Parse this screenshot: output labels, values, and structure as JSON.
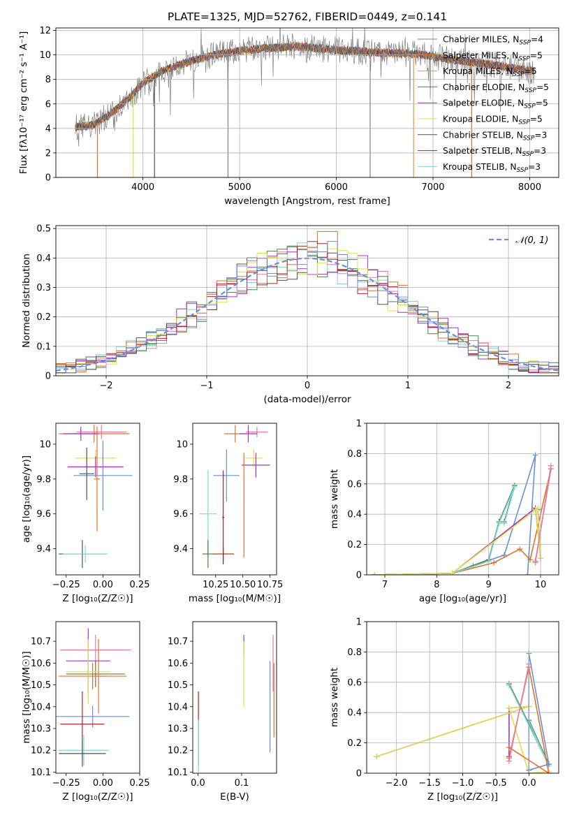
{
  "title": "PLATE=1325, MJD=52762, FIBERID=0449, z=0.141",
  "series_colors": [
    "#808080",
    "#e36f2c",
    "#e8973a",
    "#4c8040",
    "#a033c4",
    "#e0e04a",
    "#505050",
    "#b02020",
    "#7fd4d8"
  ],
  "extra_colors": {
    "blue": "#6a8ed8",
    "pink": "#e87aa8",
    "lightgreen": "#b8d880"
  },
  "chart_data": [
    {
      "id": "spectrum",
      "type": "line",
      "xlabel": "wavelength [Angstrom, rest frame]",
      "ylabel": "Flux [fλ10⁻¹⁷ erg cm⁻² s⁻¹ A⁻¹]",
      "xlim": [
        3100,
        8300
      ],
      "ylim": [
        0,
        12.2
      ],
      "xticks": [
        4000,
        5000,
        6000,
        7000,
        8000
      ],
      "yticks": [
        0,
        2,
        4,
        6,
        8,
        10,
        12
      ],
      "legend_position": "right",
      "legend": [
        "Chabrier MILES, N_SSP=4",
        "Salpeter MILES, N_SSP=5",
        "Kroupa MILES, N_SSP=5",
        "Chabrier ELODIE, N_SSP=5",
        "Salpeter ELODIE, N_SSP=5",
        "Kroupa ELODIE, N_SSP=5",
        "Chabrier STELIB, N_SSP=3",
        "Salpeter STELIB, N_SSP=3",
        "Kroupa STELIB, N_SSP=3"
      ],
      "continuum_x": [
        3300,
        3500,
        3700,
        3900,
        4000,
        4200,
        4500,
        4800,
        5200,
        5600,
        6000,
        6400,
        6800,
        7200,
        7600,
        8000,
        8050
      ],
      "continuum_y": [
        4.1,
        4.3,
        5.4,
        6.8,
        7.7,
        8.7,
        9.5,
        10.1,
        10.5,
        10.7,
        10.4,
        10.2,
        10.1,
        9.6,
        9.2,
        8.7,
        8.7
      ],
      "drops_to_zero_at": [
        3530,
        3900,
        4120,
        4880,
        6350,
        6800,
        7400
      ]
    },
    {
      "id": "residuals",
      "type": "step",
      "xlabel": "(data-model)/error",
      "ylabel": "Normed distribution",
      "xlim": [
        -2.5,
        2.5
      ],
      "ylim": [
        0,
        0.51
      ],
      "xticks": [
        -2,
        -1,
        0,
        1,
        2
      ],
      "yticks": [
        0,
        0.1,
        0.2,
        0.3,
        0.4,
        0.5
      ],
      "reference_curve": "𝒩(0, 1)",
      "legend_position": "upper right"
    },
    {
      "id": "age_vs_Z",
      "type": "errorbar",
      "xlabel": "Z [log₁₀(Z/Z☉)]",
      "ylabel": "age  [log₁₀(age/yr)]",
      "xlim": [
        -0.32,
        0.25
      ],
      "ylim": [
        9.25,
        10.12
      ],
      "xticks": [
        -0.25,
        0.0,
        0.25
      ],
      "xticklabels": [
        "−0.25",
        "0.00",
        "0.25"
      ],
      "yticks": [
        9.4,
        9.6,
        9.8,
        10.0
      ],
      "points": [
        {
          "x": -0.01,
          "y": 10.07,
          "ex": 0.17,
          "ey": 0.04,
          "color": "pink"
        },
        {
          "x": -0.06,
          "y": 10.06,
          "ex": 0.24,
          "ey": 0.05,
          "color": "#e36f2c"
        },
        {
          "x": -0.15,
          "y": 10.06,
          "ex": 0.12,
          "ey": 0.04,
          "color": "#a033c4"
        },
        {
          "x": -0.05,
          "y": 9.92,
          "ex": 0.14,
          "ey": 0.05,
          "color": "#e0e04a"
        },
        {
          "x": -0.05,
          "y": 9.87,
          "ex": 0.19,
          "ey": 0.06,
          "color": "#a033c4"
        },
        {
          "x": 0.0,
          "y": 9.82,
          "ex": 0.2,
          "ey": 0.2,
          "color": "blue"
        },
        {
          "x": -0.11,
          "y": 9.83,
          "ex": 0.05,
          "ey": 0.15,
          "color": "#505050"
        },
        {
          "x": -0.04,
          "y": 9.8,
          "ex": 0.02,
          "ey": 0.3,
          "color": "#e36f2c"
        },
        {
          "x": -0.14,
          "y": 9.37,
          "ex": 0.16,
          "ey": 0.08,
          "color": "#505050"
        },
        {
          "x": -0.12,
          "y": 9.37,
          "ex": 0.15,
          "ey": 0.05,
          "color": "#7fd4d8"
        }
      ]
    },
    {
      "id": "age_vs_mass",
      "type": "errorbar",
      "xlabel": "mass [log₁₀(M/M☉)]",
      "ylabel": "",
      "xlim": [
        10.04,
        10.81
      ],
      "ylim": [
        9.25,
        10.12
      ],
      "xticks": [
        10.25,
        10.5,
        10.75
      ],
      "xticklabels": [
        "10.25",
        "10.50",
        "10.75"
      ],
      "yticks": [
        9.4,
        9.6,
        9.8,
        10.0
      ],
      "points": [
        {
          "x": 10.63,
          "y": 10.07,
          "ex": 0.1,
          "ey": 0.03,
          "color": "pink"
        },
        {
          "x": 10.43,
          "y": 10.06,
          "ex": 0.1,
          "ey": 0.05,
          "color": "#e36f2c"
        },
        {
          "x": 10.55,
          "y": 10.06,
          "ex": 0.08,
          "ey": 0.05,
          "color": "#a033c4"
        },
        {
          "x": 10.6,
          "y": 9.92,
          "ex": 0.08,
          "ey": 0.05,
          "color": "#e0e04a"
        },
        {
          "x": 10.62,
          "y": 9.88,
          "ex": 0.13,
          "ey": 0.07,
          "color": "#a033c4"
        },
        {
          "x": 10.35,
          "y": 9.82,
          "ex": 0.12,
          "ey": 0.15,
          "color": "blue"
        },
        {
          "x": 10.18,
          "y": 9.6,
          "ex": 0.08,
          "ey": 0.25,
          "color": "#7fd4d8"
        },
        {
          "x": 10.32,
          "y": 9.58,
          "ex": 0.01,
          "ey": 0.27,
          "color": "#b02020"
        },
        {
          "x": 10.51,
          "y": 9.65,
          "ex": 0.0,
          "ey": 0.3,
          "color": "#e36f2c"
        },
        {
          "x": 10.32,
          "y": 9.37,
          "ex": 0.1,
          "ey": 0.04,
          "color": "#b02020"
        },
        {
          "x": 10.18,
          "y": 9.37,
          "ex": 0.05,
          "ey": 0.08,
          "color": "#4c8040"
        }
      ]
    },
    {
      "id": "mass_weight_vs_age",
      "type": "line",
      "xlabel": "age  [log₁₀(age/yr)]",
      "ylabel": "mass weight",
      "xlim": [
        6.65,
        10.35
      ],
      "ylim": [
        0,
        1.0
      ],
      "xticks": [
        7,
        8,
        9,
        10
      ],
      "yticks": [
        0,
        0.2,
        0.4,
        0.6,
        0.8,
        1.0
      ],
      "series": [
        {
          "color": "blue",
          "x": [
            6.8,
            8.3,
            8.7,
            9.3,
            9.9,
            9.75
          ],
          "y": [
            0.0,
            0.01,
            0.06,
            0.13,
            0.79,
            0.0
          ]
        },
        {
          "color": "#e36f2c",
          "x": [
            6.8,
            8.3,
            9.1,
            9.6,
            9.8,
            10.2,
            9.9
          ],
          "y": [
            0.0,
            0.01,
            0.08,
            0.17,
            0.1,
            0.7,
            0.09
          ]
        },
        {
          "color": "#4c8040",
          "x": [
            6.8,
            8.3,
            9.0,
            9.2,
            9.5,
            9.3
          ],
          "y": [
            0.0,
            0.01,
            0.1,
            0.35,
            0.59,
            0.35
          ]
        },
        {
          "color": "#7fd4d8",
          "x": [
            6.8,
            8.3,
            9.0,
            9.2,
            9.5,
            9.3
          ],
          "y": [
            0.0,
            0.01,
            0.09,
            0.34,
            0.58,
            0.34
          ]
        },
        {
          "color": "#a033c4",
          "x": [
            6.8,
            8.3,
            9.9,
            10.0,
            9.95
          ],
          "y": [
            0.0,
            0.01,
            0.44,
            0.11,
            0.43
          ]
        },
        {
          "color": "#e0e04a",
          "x": [
            6.8,
            8.3,
            9.95,
            10.0,
            9.9
          ],
          "y": [
            0.0,
            0.01,
            0.44,
            0.11,
            0.43
          ]
        },
        {
          "color": "pink",
          "x": [
            9.9,
            10.2
          ],
          "y": [
            0.08,
            0.72
          ]
        }
      ]
    },
    {
      "id": "mass_vs_Z",
      "type": "errorbar",
      "xlabel": "Z [log₁₀(Z/Z☉)]",
      "ylabel": "mass [log₁₀(M/M☉)]",
      "xlim": [
        -0.32,
        0.25
      ],
      "ylim": [
        10.095,
        10.79
      ],
      "xticks": [
        -0.25,
        0.0,
        0.25
      ],
      "xticklabels": [
        "−0.25",
        "0.00",
        "0.25"
      ],
      "yticks": [
        10.1,
        10.2,
        10.3,
        10.4,
        10.5,
        10.6,
        10.7
      ],
      "points": [
        {
          "x": -0.05,
          "y": 10.66,
          "ex": 0.24,
          "ey": 0.07,
          "color": "pink"
        },
        {
          "x": -0.1,
          "y": 10.61,
          "ex": 0.15,
          "ey": 0.15,
          "color": "#a033c4"
        },
        {
          "x": -0.05,
          "y": 10.55,
          "ex": 0.2,
          "ey": 0.06,
          "color": "#4c8040"
        },
        {
          "x": -0.07,
          "y": 10.54,
          "ex": 0.23,
          "ey": 0.06,
          "color": "#e36f2c"
        },
        {
          "x": -0.1,
          "y": 10.56,
          "ex": 0.15,
          "ey": 0.15,
          "color": "#e0e04a"
        },
        {
          "x": -0.03,
          "y": 10.54,
          "ex": 0.03,
          "ey": 0.17,
          "color": "#e36f2c"
        },
        {
          "x": -0.07,
          "y": 10.355,
          "ex": 0.25,
          "ey": 0.05,
          "color": "blue"
        },
        {
          "x": -0.14,
          "y": 10.32,
          "ex": 0.15,
          "ey": 0.15,
          "color": "#b02020"
        },
        {
          "x": -0.13,
          "y": 10.2,
          "ex": 0.17,
          "ey": 0.07,
          "color": "#7fd4d8"
        },
        {
          "x": -0.14,
          "y": 10.185,
          "ex": 0.16,
          "ey": 0.06,
          "color": "#505050"
        }
      ]
    },
    {
      "id": "mass_vs_EBV",
      "type": "errorbar",
      "xlabel": "E(B-V)",
      "ylabel": "",
      "xlim": [
        -0.012,
        0.18
      ],
      "ylim": [
        10.095,
        10.79
      ],
      "xticks": [
        0.0,
        0.1
      ],
      "xticklabels": [
        "0.0",
        "0.1"
      ],
      "yticks": [
        10.1,
        10.2,
        10.3,
        10.4,
        10.5,
        10.6,
        10.7
      ],
      "points": [
        {
          "x": 0.105,
          "y": 10.68,
          "ex": 0,
          "ey": 0.05,
          "color": "#a033c4"
        },
        {
          "x": 0.105,
          "y": 10.55,
          "ex": 0,
          "ey": 0.15,
          "color": "#e0e04a"
        },
        {
          "x": 0.165,
          "y": 10.4,
          "ex": 0,
          "ey": 0.21,
          "color": "blue"
        },
        {
          "x": 0.172,
          "y": 10.6,
          "ex": 0,
          "ey": 0.13,
          "color": "pink"
        },
        {
          "x": 0.174,
          "y": 10.43,
          "ex": 0,
          "ey": 0.17,
          "color": "#e36f2c"
        },
        {
          "x": 0.001,
          "y": 10.3,
          "ex": 0,
          "ey": 0.17,
          "color": "#b02020"
        },
        {
          "x": 0.001,
          "y": 10.22,
          "ex": 0,
          "ey": 0.12,
          "color": "#7fd4d8"
        }
      ]
    },
    {
      "id": "mass_weight_vs_Z",
      "type": "line",
      "xlabel": "Z [log₁₀(Z/Z☉)]",
      "ylabel": "mass weight",
      "xlim": [
        -2.45,
        0.45
      ],
      "ylim": [
        0,
        1.0
      ],
      "xticks": [
        -2.0,
        -1.5,
        -1.0,
        -0.5,
        0.0
      ],
      "xticklabels": [
        "−2.0",
        "−1.5",
        "−1.0",
        "−0.5",
        "0.0"
      ],
      "yticks": [
        0,
        0.2,
        0.4,
        0.6,
        0.8,
        1.0
      ],
      "series": [
        {
          "color": "#a033c4",
          "x": [
            -2.3,
            0.0,
            -0.3,
            -0.3
          ],
          "y": [
            0.11,
            0.44,
            0.43,
            0.11
          ]
        },
        {
          "color": "#e0e04a",
          "x": [
            -2.3,
            0.0,
            -0.3,
            0.0,
            0.3
          ],
          "y": [
            0.11,
            0.44,
            0.43,
            0.0,
            0.01
          ]
        },
        {
          "color": "#4c8040",
          "x": [
            -0.3,
            0.3,
            0.0
          ],
          "y": [
            0.59,
            0.06,
            0.35
          ]
        },
        {
          "color": "#7fd4d8",
          "x": [
            -0.3,
            0.3,
            0.0
          ],
          "y": [
            0.58,
            0.05,
            0.34
          ]
        },
        {
          "color": "blue",
          "x": [
            0.0,
            0.0,
            0.3,
            0.0
          ],
          "y": [
            0.02,
            0.79,
            0.06,
            0.02
          ]
        },
        {
          "color": "#e36f2c",
          "x": [
            -0.3,
            0.0,
            0.3,
            -0.3
          ],
          "y": [
            0.1,
            0.7,
            0.0,
            0.17
          ]
        },
        {
          "color": "pink",
          "x": [
            -0.3,
            0.0
          ],
          "y": [
            0.08,
            0.72
          ]
        }
      ]
    }
  ]
}
